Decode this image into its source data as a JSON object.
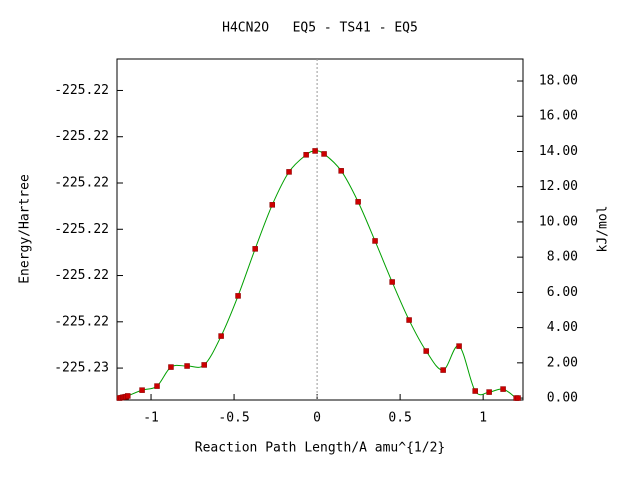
{
  "chart_data": {
    "type": "line",
    "title": "H4CN2O   EQ5 - TS41 - EQ5",
    "xlabel": "Reaction Path Length/A amu^{1/2}",
    "ylabel": "Energy/Hartree",
    "y2label": "kJ/mol",
    "xlim": [
      -1.205,
      1.24
    ],
    "xticks": [
      -1,
      -0.5,
      0,
      0.5,
      1
    ],
    "ylim": [
      -225.23069,
      -225.22332
    ],
    "yticks": [
      {
        "value": -225.224,
        "label": "-225.22"
      },
      {
        "value": -225.225,
        "label": "-225.22"
      },
      {
        "value": -225.226,
        "label": "-225.22"
      },
      {
        "value": -225.227,
        "label": "-225.22"
      },
      {
        "value": -225.228,
        "label": "-225.22"
      },
      {
        "value": -225.229,
        "label": "-225.22"
      },
      {
        "value": -225.23,
        "label": "-225.23"
      }
    ],
    "y2lim": [
      -0.11,
      19.25
    ],
    "y2ticks": [
      {
        "value": 0,
        "label": "0.00"
      },
      {
        "value": 2,
        "label": "2.00"
      },
      {
        "value": 4,
        "label": "4.00"
      },
      {
        "value": 6,
        "label": "6.00"
      },
      {
        "value": 8,
        "label": "8.00"
      },
      {
        "value": 10,
        "label": "10.00"
      },
      {
        "value": 12,
        "label": "12.00"
      },
      {
        "value": 14,
        "label": "14.00"
      },
      {
        "value": 16,
        "label": "16.00"
      },
      {
        "value": 18,
        "label": "18.00"
      }
    ],
    "reference_line_x": 0,
    "series": [
      {
        "axis": "y2",
        "color": "#00a000",
        "marker_color": "#cc0000",
        "x": [
          -1.19,
          -1.18,
          -1.17,
          -1.16,
          -1.15,
          -1.14,
          -1.054,
          -0.964,
          -0.88,
          -0.783,
          -0.68,
          -0.578,
          -0.476,
          -0.373,
          -0.27,
          -0.169,
          -0.066,
          -0.012,
          0.042,
          0.145,
          0.247,
          0.349,
          0.452,
          0.554,
          0.657,
          0.759,
          0.855,
          0.952,
          1.036,
          1.12,
          1.199,
          1.21
        ],
        "values": [
          0.0,
          0.02,
          0.04,
          0.06,
          0.08,
          0.12,
          0.45,
          0.68,
          1.76,
          1.82,
          1.88,
          3.52,
          5.8,
          8.47,
          10.97,
          12.84,
          13.81,
          14.03,
          13.86,
          12.9,
          11.14,
          8.92,
          6.59,
          4.43,
          2.67,
          1.59,
          2.95,
          0.4,
          0.34,
          0.51,
          0.0,
          0.0
        ]
      }
    ]
  }
}
